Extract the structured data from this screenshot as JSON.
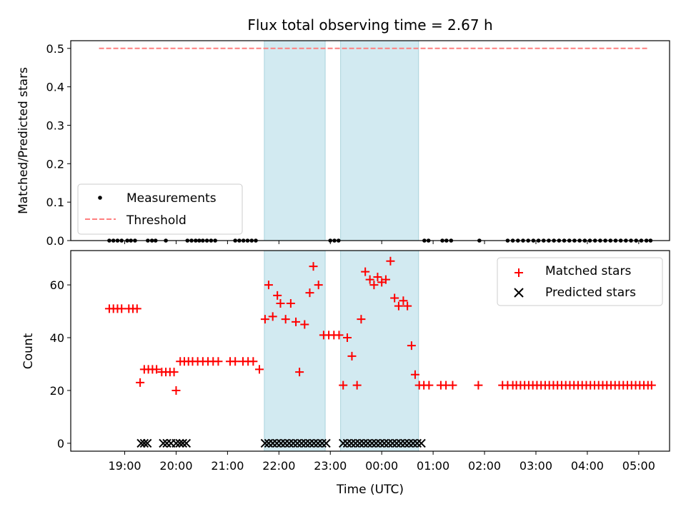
{
  "chart_data": [
    {
      "type": "scatter",
      "title": "Flux total observing time = 2.67 h",
      "xlabel": "",
      "ylabel": "Matched/Predicted stars",
      "ylim": [
        0,
        0.52
      ],
      "yticks": [
        "0.0",
        "0.1",
        "0.2",
        "0.3",
        "0.4",
        "0.5"
      ],
      "xlim_hours_utc": [
        17.95,
        29.6
      ],
      "legend_position": "lower-left",
      "shaded_intervals": [
        [
          "21:43",
          "22:54"
        ],
        [
          "23:12",
          "00:43"
        ]
      ],
      "colors": {
        "measurements": "#000000",
        "threshold": "#ff7f7f",
        "shade": "#add8e6"
      },
      "series": [
        {
          "name": "Measurements",
          "marker": "dot",
          "x_hours_utc": [
            18.7,
            18.78,
            18.86,
            18.94,
            19.05,
            19.12,
            19.2,
            19.45,
            19.53,
            19.6,
            19.8,
            20.22,
            20.3,
            20.38,
            20.45,
            20.52,
            20.6,
            20.68,
            20.76,
            21.15,
            21.23,
            21.31,
            21.39,
            21.47,
            21.55,
            23.0,
            23.08,
            23.16,
            24.83,
            24.91,
            25.18,
            25.26,
            25.35,
            25.9,
            26.45,
            26.55,
            26.65,
            26.75,
            26.85,
            26.95,
            27.05,
            27.15,
            27.25,
            27.35,
            27.45,
            27.55,
            27.65,
            27.75,
            27.85,
            27.95,
            28.05,
            28.15,
            28.25,
            28.35,
            28.45,
            28.55,
            28.65,
            28.75,
            28.85,
            28.95,
            29.05,
            29.15,
            29.23
          ],
          "y": 0
        },
        {
          "name": "Threshold",
          "style": "dashed",
          "x_hours_utc": [
            18.5,
            29.2
          ],
          "y": [
            0.5,
            0.5
          ]
        }
      ],
      "legend": [
        "Measurements",
        "Threshold"
      ]
    },
    {
      "type": "scatter",
      "title": "",
      "xlabel": "Time (UTC)",
      "ylabel": "Count",
      "ylim": [
        -3,
        73
      ],
      "yticks": [
        "0",
        "20",
        "40",
        "60"
      ],
      "xticks": [
        "19:00",
        "20:00",
        "21:00",
        "22:00",
        "23:00",
        "00:00",
        "01:00",
        "02:00",
        "03:00",
        "04:00",
        "05:00"
      ],
      "legend_position": "upper-right",
      "colors": {
        "matched": "#ff0000",
        "predicted": "#000000"
      },
      "series": [
        {
          "name": "Matched stars",
          "marker": "plus",
          "points": [
            [
              18.7,
              51
            ],
            [
              18.78,
              51
            ],
            [
              18.86,
              51
            ],
            [
              18.94,
              51
            ],
            [
              19.08,
              51
            ],
            [
              19.16,
              51
            ],
            [
              19.24,
              51
            ],
            [
              19.3,
              23
            ],
            [
              19.38,
              28
            ],
            [
              19.46,
              28
            ],
            [
              19.54,
              28
            ],
            [
              19.62,
              28
            ],
            [
              19.72,
              27
            ],
            [
              19.8,
              27
            ],
            [
              19.88,
              27
            ],
            [
              19.96,
              27
            ],
            [
              20.0,
              20
            ],
            [
              20.08,
              31
            ],
            [
              20.16,
              31
            ],
            [
              20.24,
              31
            ],
            [
              20.32,
              31
            ],
            [
              20.42,
              31
            ],
            [
              20.52,
              31
            ],
            [
              20.62,
              31
            ],
            [
              20.72,
              31
            ],
            [
              20.82,
              31
            ],
            [
              21.05,
              31
            ],
            [
              21.15,
              31
            ],
            [
              21.3,
              31
            ],
            [
              21.4,
              31
            ],
            [
              21.5,
              31
            ],
            [
              21.62,
              28
            ],
            [
              21.73,
              47
            ],
            [
              21.8,
              60
            ],
            [
              21.88,
              48
            ],
            [
              21.97,
              56
            ],
            [
              22.03,
              53
            ],
            [
              22.13,
              47
            ],
            [
              22.23,
              53
            ],
            [
              22.33,
              46
            ],
            [
              22.4,
              27
            ],
            [
              22.5,
              45
            ],
            [
              22.6,
              57
            ],
            [
              22.67,
              67
            ],
            [
              22.77,
              60
            ],
            [
              22.87,
              41
            ],
            [
              22.97,
              41
            ],
            [
              23.07,
              41
            ],
            [
              23.17,
              41
            ],
            [
              23.25,
              22
            ],
            [
              23.33,
              40
            ],
            [
              23.42,
              33
            ],
            [
              23.52,
              22
            ],
            [
              23.6,
              47
            ],
            [
              23.68,
              65
            ],
            [
              23.77,
              62
            ],
            [
              23.85,
              60
            ],
            [
              23.92,
              63
            ],
            [
              24.0,
              61
            ],
            [
              24.08,
              62
            ],
            [
              24.17,
              69
            ],
            [
              24.25,
              55
            ],
            [
              24.33,
              52
            ],
            [
              24.42,
              54
            ],
            [
              24.5,
              52
            ],
            [
              24.58,
              37
            ],
            [
              24.65,
              26
            ],
            [
              24.73,
              22
            ],
            [
              24.82,
              22
            ],
            [
              24.92,
              22
            ],
            [
              25.15,
              22
            ],
            [
              25.25,
              22
            ],
            [
              25.38,
              22
            ],
            [
              25.88,
              22
            ],
            [
              26.35,
              22
            ],
            [
              26.45,
              22
            ],
            [
              26.55,
              22
            ],
            [
              26.62,
              22
            ],
            [
              26.7,
              22
            ],
            [
              26.78,
              22
            ],
            [
              26.86,
              22
            ],
            [
              26.94,
              22
            ],
            [
              27.02,
              22
            ],
            [
              27.1,
              22
            ],
            [
              27.18,
              22
            ],
            [
              27.26,
              22
            ],
            [
              27.34,
              22
            ],
            [
              27.42,
              22
            ],
            [
              27.5,
              22
            ],
            [
              27.58,
              22
            ],
            [
              27.66,
              22
            ],
            [
              27.74,
              22
            ],
            [
              27.82,
              22
            ],
            [
              27.9,
              22
            ],
            [
              27.98,
              22
            ],
            [
              28.06,
              22
            ],
            [
              28.14,
              22
            ],
            [
              28.22,
              22
            ],
            [
              28.3,
              22
            ],
            [
              28.38,
              22
            ],
            [
              28.46,
              22
            ],
            [
              28.54,
              22
            ],
            [
              28.62,
              22
            ],
            [
              28.7,
              22
            ],
            [
              28.78,
              22
            ],
            [
              28.86,
              22
            ],
            [
              28.94,
              22
            ],
            [
              29.02,
              22
            ],
            [
              29.1,
              22
            ],
            [
              29.18,
              22
            ],
            [
              29.25,
              22
            ]
          ]
        },
        {
          "name": "Predicted stars",
          "marker": "x",
          "points": [
            [
              19.32,
              0
            ],
            [
              19.38,
              0
            ],
            [
              19.44,
              0
            ],
            [
              19.75,
              0
            ],
            [
              19.82,
              0
            ],
            [
              19.9,
              0
            ],
            [
              20.0,
              0
            ],
            [
              20.07,
              0
            ],
            [
              20.13,
              0
            ],
            [
              20.2,
              0
            ],
            [
              21.73,
              0
            ],
            [
              21.8,
              0
            ],
            [
              21.88,
              0
            ],
            [
              21.96,
              0
            ],
            [
              22.04,
              0
            ],
            [
              22.12,
              0
            ],
            [
              22.2,
              0
            ],
            [
              22.28,
              0
            ],
            [
              22.36,
              0
            ],
            [
              22.44,
              0
            ],
            [
              22.52,
              0
            ],
            [
              22.6,
              0
            ],
            [
              22.68,
              0
            ],
            [
              22.76,
              0
            ],
            [
              22.84,
              0
            ],
            [
              22.92,
              0
            ],
            [
              23.25,
              0
            ],
            [
              23.33,
              0
            ],
            [
              23.41,
              0
            ],
            [
              23.49,
              0
            ],
            [
              23.57,
              0
            ],
            [
              23.65,
              0
            ],
            [
              23.73,
              0
            ],
            [
              23.81,
              0
            ],
            [
              23.89,
              0
            ],
            [
              23.97,
              0
            ],
            [
              24.05,
              0
            ],
            [
              24.13,
              0
            ],
            [
              24.21,
              0
            ],
            [
              24.29,
              0
            ],
            [
              24.37,
              0
            ],
            [
              24.45,
              0
            ],
            [
              24.53,
              0
            ],
            [
              24.61,
              0
            ],
            [
              24.69,
              0
            ],
            [
              24.77,
              0
            ]
          ]
        }
      ],
      "legend": [
        "Matched stars",
        "Predicted stars"
      ]
    }
  ]
}
